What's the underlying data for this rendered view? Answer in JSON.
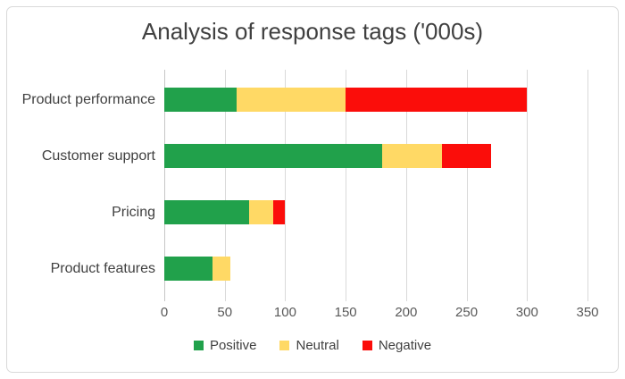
{
  "chart_data": {
    "type": "bar",
    "orientation": "horizontal",
    "stacked": true,
    "title": "Analysis of response tags ('000s)",
    "categories": [
      "Product performance",
      "Customer support",
      "Pricing",
      "Product features"
    ],
    "series": [
      {
        "name": "Positive",
        "color": "#21A14B",
        "values": [
          60,
          180,
          70,
          40
        ]
      },
      {
        "name": "Neutral",
        "color": "#FFD965",
        "values": [
          90,
          50,
          20,
          15
        ]
      },
      {
        "name": "Negative",
        "color": "#FB0D0A",
        "values": [
          150,
          40,
          10,
          0
        ]
      }
    ],
    "totals": [
      300,
      270,
      100,
      55
    ],
    "xlabel": "",
    "ylabel": "",
    "xlim": [
      0,
      350
    ],
    "xticks": [
      0,
      50,
      100,
      150,
      200,
      250,
      300,
      350
    ],
    "grid": true,
    "legend_position": "bottom",
    "colors": {
      "gridline": "#D9D9D9",
      "axis_line": "#C6C6C6",
      "frame_border": "#D9D9D9",
      "background": "#FFFFFF",
      "title_text": "#404040",
      "category_text": "#404040",
      "tick_text": "#595959",
      "legend_text": "#404040"
    }
  }
}
